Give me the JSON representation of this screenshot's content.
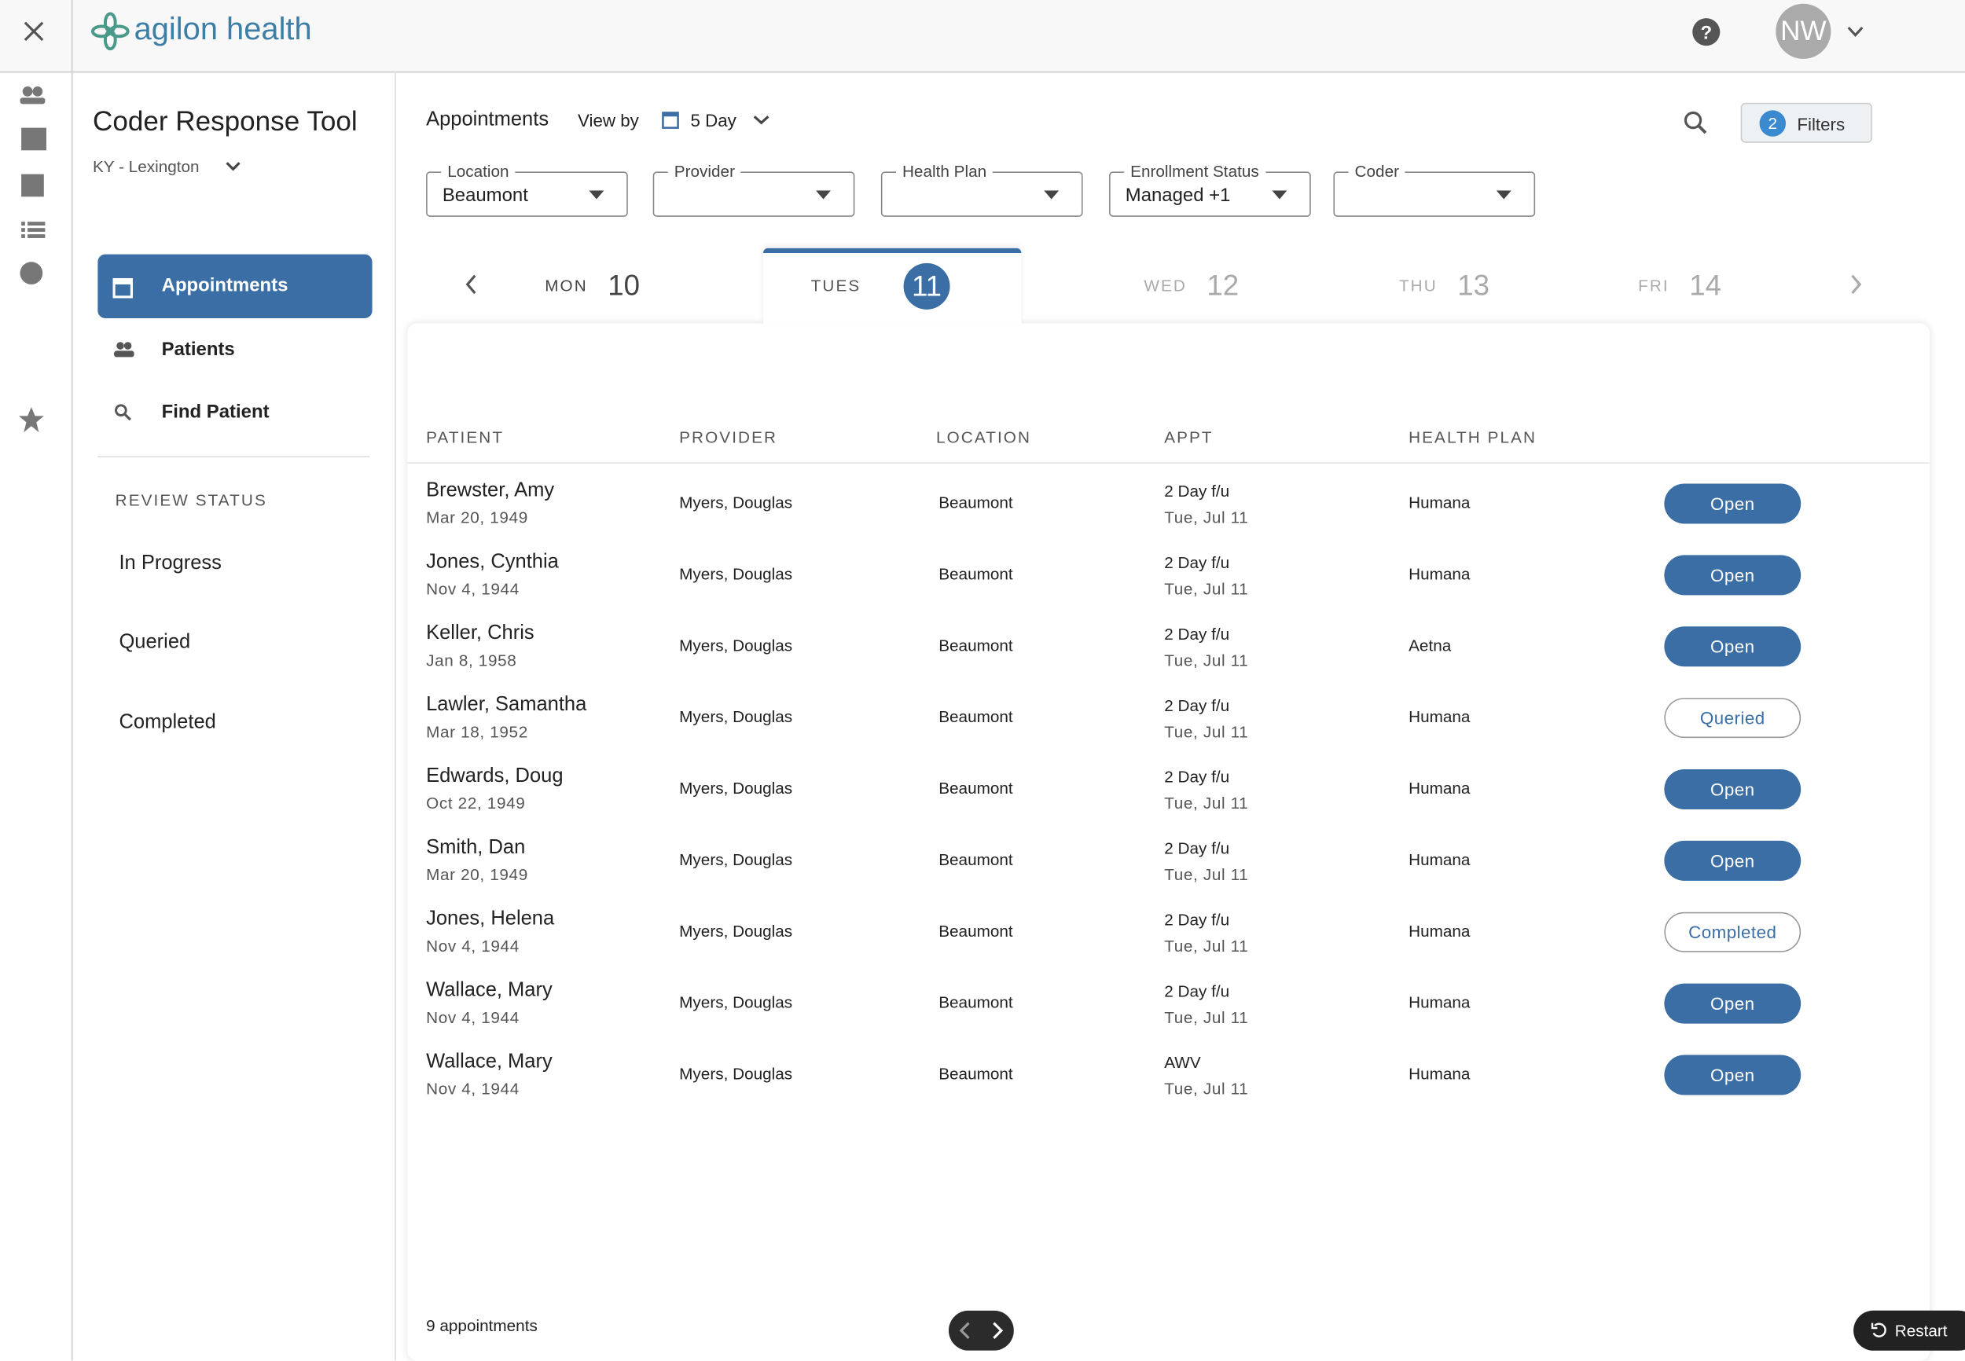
{
  "header": {
    "logo": "agilon health",
    "avatar": "NW"
  },
  "sidebar": {
    "title": "Coder Response Tool",
    "region": "KY - Lexington",
    "nav": [
      "Appointments",
      "Patients",
      "Find Patient"
    ],
    "review_status": {
      "heading": "REVIEW STATUS",
      "items": [
        "In Progress",
        "Queried",
        "Completed"
      ]
    }
  },
  "toolbar": {
    "title": "Appointments",
    "view_by": "View by",
    "view": "5 Day",
    "filter_count": "2",
    "filters_button": "Filters"
  },
  "filters": [
    {
      "label": "Location",
      "value": "Beaumont"
    },
    {
      "label": "Provider"
    },
    {
      "label": "Health Plan"
    },
    {
      "label": "Enrollment Status",
      "value": "Managed +1"
    },
    {
      "label": "Coder"
    }
  ],
  "days": [
    {
      "day": "MON",
      "date": "10"
    },
    {
      "day": "TUES",
      "date": "11",
      "active": true
    },
    {
      "day": "WED",
      "date": "12"
    },
    {
      "day": "THU",
      "date": "13"
    },
    {
      "day": "FRI",
      "date": "14"
    }
  ],
  "table": {
    "columns": [
      "PATIENT",
      "PROVIDER",
      "LOCATION",
      "APPT",
      "HEALTH PLAN"
    ],
    "rows": [
      {
        "patient": "Brewster, Amy",
        "dob": "Mar 20, 1949",
        "provider": "Myers, Douglas",
        "location": "Beaumont",
        "appt": "2 Day f/u",
        "appt_date": "Tue, Jul 11",
        "health_plan": "Humana",
        "status": "Open"
      },
      {
        "patient": "Jones, Cynthia",
        "dob": "Nov 4, 1944",
        "provider": "Myers, Douglas",
        "location": "Beaumont",
        "appt": "2 Day f/u",
        "appt_date": "Tue, Jul 11",
        "health_plan": "Humana",
        "status": "Open"
      },
      {
        "patient": "Keller, Chris",
        "dob": "Jan 8, 1958",
        "provider": "Myers, Douglas",
        "location": "Beaumont",
        "appt": "2 Day f/u",
        "appt_date": "Tue, Jul 11",
        "health_plan": "Aetna",
        "status": "Open"
      },
      {
        "patient": "Lawler, Samantha",
        "dob": "Mar 18, 1952",
        "provider": "Myers, Douglas",
        "location": "Beaumont",
        "appt": "2 Day f/u",
        "appt_date": "Tue, Jul 11",
        "health_plan": "Humana",
        "status": "Queried"
      },
      {
        "patient": "Edwards, Doug",
        "dob": "Oct 22, 1949",
        "provider": "Myers, Douglas",
        "location": "Beaumont",
        "appt": "2 Day f/u",
        "appt_date": "Tue, Jul 11",
        "health_plan": "Humana",
        "status": "Open"
      },
      {
        "patient": "Smith, Dan",
        "dob": "Mar 20, 1949",
        "provider": "Myers, Douglas",
        "location": "Beaumont",
        "appt": "2 Day f/u",
        "appt_date": "Tue, Jul 11",
        "health_plan": "Humana",
        "status": "Open"
      },
      {
        "patient": "Jones, Helena",
        "dob": "Nov 4, 1944",
        "provider": "Myers, Douglas",
        "location": "Beaumont",
        "appt": "2 Day f/u",
        "appt_date": "Tue, Jul 11",
        "health_plan": "Humana",
        "status": "Completed"
      },
      {
        "patient": "Wallace, Mary",
        "dob": "Nov 4, 1944",
        "provider": "Myers, Douglas",
        "location": "Beaumont",
        "appt": "2 Day f/u",
        "appt_date": "Tue, Jul 11",
        "health_plan": "Humana",
        "status": "Open"
      },
      {
        "patient": "Wallace, Mary",
        "dob": "Nov 4, 1944",
        "provider": "Myers, Douglas",
        "location": "Beaumont",
        "appt": "AWV",
        "appt_date": "Tue, Jul 11",
        "health_plan": "Humana",
        "status": "Open"
      }
    ]
  },
  "footer": {
    "count": "9 appointments",
    "restart": "Restart"
  }
}
